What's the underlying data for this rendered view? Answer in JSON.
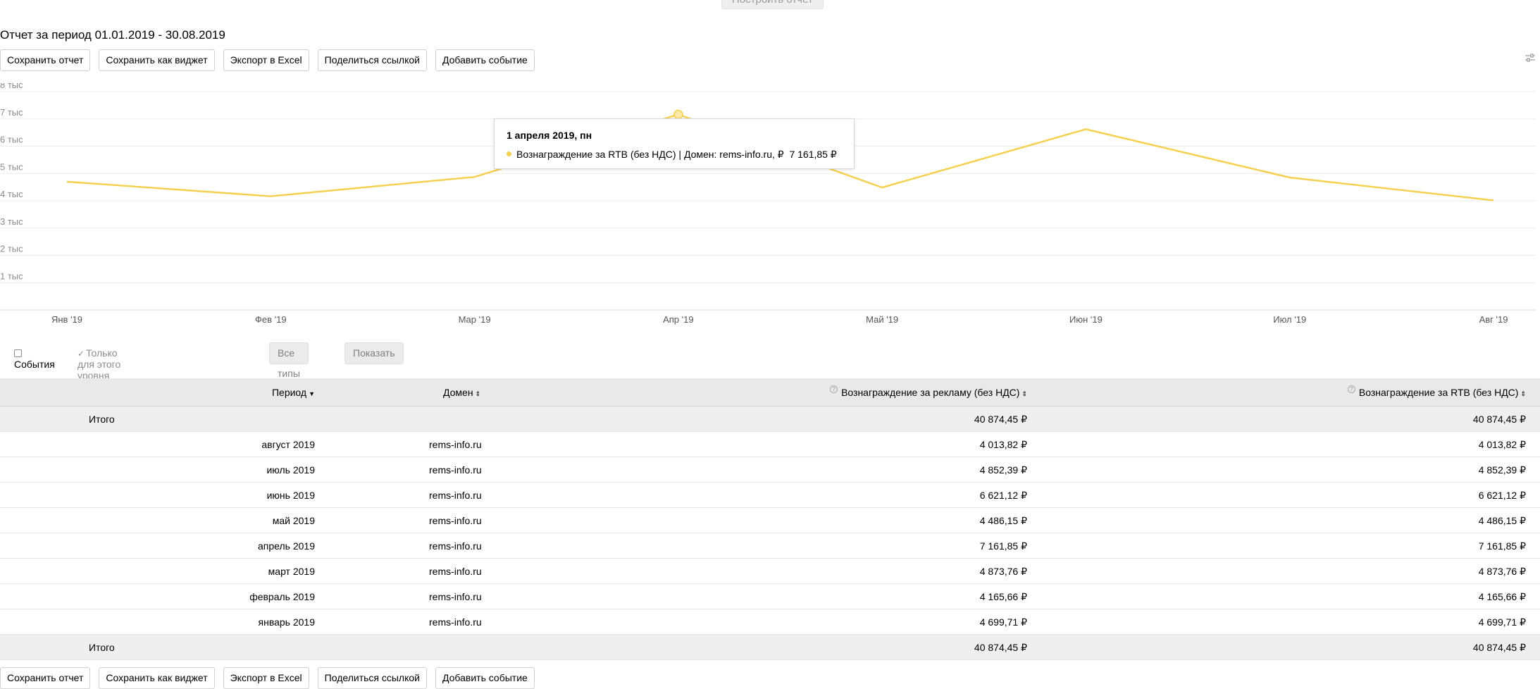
{
  "top": {
    "build_report_label": "Построить отчет"
  },
  "report": {
    "title": "Отчет за период 01.01.2019 - 30.08.2019"
  },
  "actions": {
    "save_report": "Сохранить отчет",
    "save_widget": "Сохранить как виджет",
    "export_excel": "Экспорт в Excel",
    "share_link": "Поделиться ссылкой",
    "add_event": "Добавить событие"
  },
  "icons": {
    "settings": "sliders-icon",
    "sort_desc": "triangle-down-icon",
    "sort_both": "sort-icon",
    "help": "question-icon",
    "checkbox": "checkbox-icon"
  },
  "colors": {
    "series": "#f5cf4b",
    "grid": "#ebebeb"
  },
  "chart_data": {
    "type": "line",
    "categories": [
      "Янв '19",
      "Фев '19",
      "Мар '19",
      "Апр '19",
      "Май '19",
      "Июн '19",
      "Июл '19",
      "Авг '19"
    ],
    "y_ticks": [
      "1 тыс",
      "2 тыс",
      "3 тыс",
      "4 тыс",
      "5 тыс",
      "6 тыс",
      "7 тыс",
      "8 тыс"
    ],
    "ylim": [
      0,
      8000
    ],
    "grid": true,
    "series": [
      {
        "name": "Вознаграждение за RTB (без НДС) | Домен: rems-info.ru, ₽",
        "values": [
          4699.71,
          4165.66,
          4873.76,
          7161.85,
          4486.15,
          6621.12,
          4852.39,
          4013.82
        ]
      }
    ],
    "highlight_index": 3
  },
  "tooltip": {
    "date": "1 апреля 2019, пн",
    "series_label": "Вознаграждение за RTB (без НДС) | Домен: rems-info.ru, ₽",
    "value": "7 161,85 ₽"
  },
  "filters": {
    "events_label": "События",
    "events_checked": false,
    "level_only_label": "Только для этого уровня статистики",
    "level_only_checked": true,
    "types_select_value": "Все типы",
    "show_button": "Показать"
  },
  "table": {
    "headers": {
      "period": "Период",
      "domain": "Домен",
      "ad_reward": "Вознаграждение за рекламу (без НДС)",
      "rtb_reward": "Вознаграждение за RTB (без НДС)"
    },
    "total_label": "Итого",
    "total_ad_reward": "40 874,45 ₽",
    "total_rtb_reward": "40 874,45 ₽",
    "rows": [
      {
        "period": "август 2019",
        "domain": "rems-info.ru",
        "ad_reward": "4 013,82 ₽",
        "rtb_reward": "4 013,82 ₽"
      },
      {
        "period": "июль 2019",
        "domain": "rems-info.ru",
        "ad_reward": "4 852,39 ₽",
        "rtb_reward": "4 852,39 ₽"
      },
      {
        "period": "июнь 2019",
        "domain": "rems-info.ru",
        "ad_reward": "6 621,12 ₽",
        "rtb_reward": "6 621,12 ₽"
      },
      {
        "period": "май 2019",
        "domain": "rems-info.ru",
        "ad_reward": "4 486,15 ₽",
        "rtb_reward": "4 486,15 ₽"
      },
      {
        "period": "апрель 2019",
        "domain": "rems-info.ru",
        "ad_reward": "7 161,85 ₽",
        "rtb_reward": "7 161,85 ₽"
      },
      {
        "period": "март 2019",
        "domain": "rems-info.ru",
        "ad_reward": "4 873,76 ₽",
        "rtb_reward": "4 873,76 ₽"
      },
      {
        "period": "февраль 2019",
        "domain": "rems-info.ru",
        "ad_reward": "4 165,66 ₽",
        "rtb_reward": "4 165,66 ₽"
      },
      {
        "period": "январь 2019",
        "domain": "rems-info.ru",
        "ad_reward": "4 699,71 ₽",
        "rtb_reward": "4 699,71 ₽"
      }
    ]
  }
}
